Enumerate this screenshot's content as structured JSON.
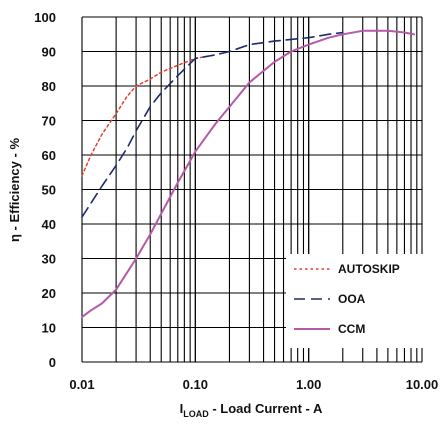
{
  "chart_data": {
    "type": "line",
    "xscale": "log",
    "xlim": [
      0.01,
      10
    ],
    "ylim": [
      0,
      100
    ],
    "grid": true,
    "legend_position": "bottom-right",
    "xticks": [
      "0.01",
      "0.10",
      "1.00",
      "10.00"
    ],
    "yticks": [
      "0",
      "10",
      "20",
      "30",
      "40",
      "50",
      "60",
      "70",
      "80",
      "90",
      "100"
    ],
    "xlabel": {
      "main": "I",
      "sub": "LOAD",
      "rest": " - Load Current - A"
    },
    "ylabel": "η - Efficiency - %",
    "series": [
      {
        "name": "AUTOSKIP",
        "color": "#e0402a",
        "dash": "dotted",
        "x": [
          0.01,
          0.012,
          0.015,
          0.02,
          0.025,
          0.03,
          0.04,
          0.05,
          0.07,
          0.1,
          0.15
        ],
        "y": [
          54,
          60,
          66,
          72,
          77,
          80,
          82,
          84,
          86,
          88,
          89
        ]
      },
      {
        "name": "OOA",
        "color": "#1f2a6e",
        "dash": "dashed",
        "x": [
          0.01,
          0.015,
          0.02,
          0.025,
          0.03,
          0.04,
          0.05,
          0.07,
          0.1,
          0.15,
          0.2,
          0.3,
          0.5,
          0.7,
          1.0,
          1.5,
          2.0
        ],
        "y": [
          42,
          51,
          57,
          62,
          67,
          74,
          78,
          83,
          88,
          89,
          90,
          92,
          93,
          93.5,
          94,
          95,
          95.5
        ]
      },
      {
        "name": "CCM",
        "color": "#b45aa8",
        "dash": "solid",
        "x": [
          0.01,
          0.012,
          0.015,
          0.02,
          0.03,
          0.04,
          0.05,
          0.07,
          0.1,
          0.15,
          0.2,
          0.3,
          0.5,
          0.7,
          1.0,
          1.5,
          2.0,
          3.0,
          5.0,
          7.0,
          8.5
        ],
        "y": [
          13,
          15,
          17,
          21,
          30,
          37,
          43,
          52,
          61,
          69,
          74,
          81,
          87,
          90,
          92,
          94,
          95,
          96,
          96,
          95.5,
          95
        ]
      }
    ]
  }
}
